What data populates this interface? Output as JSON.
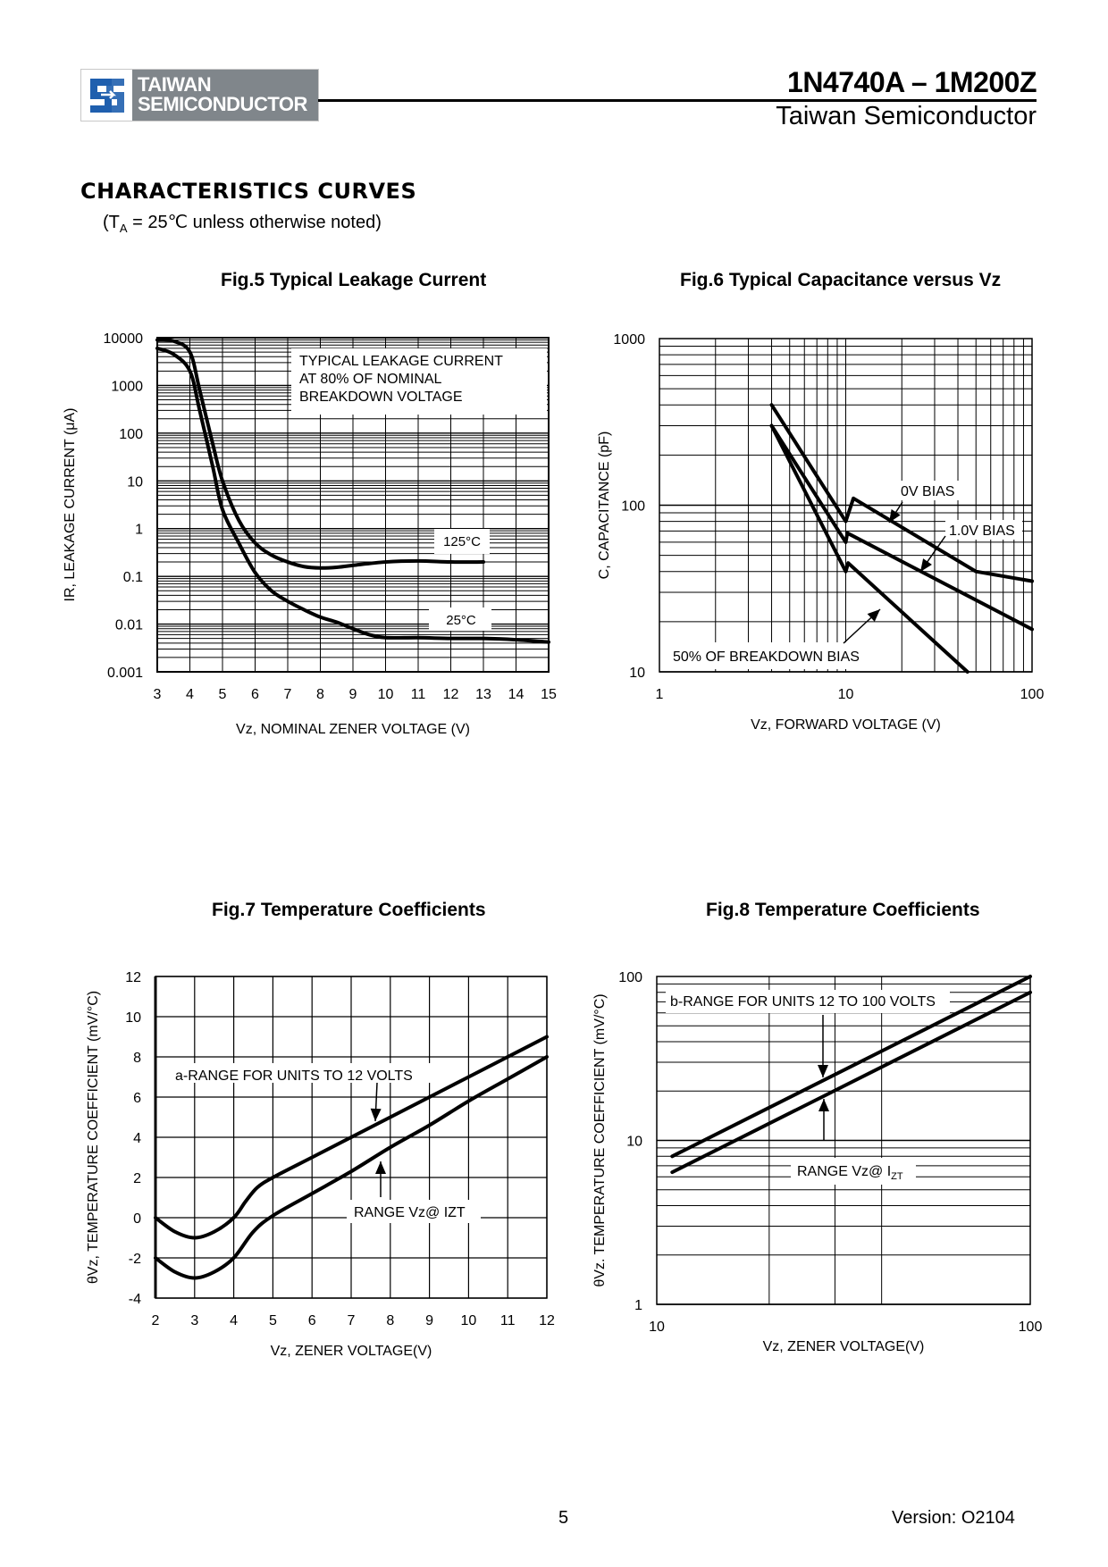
{
  "header": {
    "logo_line1": "TAIWAN",
    "logo_line2": "SEMICONDUCTOR",
    "logo_icon": "ts-logo-icon",
    "brand_color": "#1f5fae",
    "logo_bg": "#80868b",
    "part_range": "1N4740A – 1M200Z",
    "company": "Taiwan Semiconductor"
  },
  "section": {
    "title": "CHARACTERISTICS CURVES",
    "note_prefix": "(T",
    "note_sub": "A",
    "note_suffix": " = 25℃ unless otherwise noted)"
  },
  "footer": {
    "page": "5",
    "version": "Version: O2104"
  },
  "chart_data": [
    {
      "id": "fig5",
      "type": "line",
      "title": "Fig.5 Typical Leakage Current",
      "xlabel": "Vz, NOMINAL ZENER VOLTAGE (V)",
      "ylabel": "IR, LEAKAGE CURRENT (μA)",
      "xscale": "linear",
      "yscale": "log",
      "xlim": [
        3,
        15
      ],
      "ylim": [
        0.001,
        10000
      ],
      "xticks": [
        "3",
        "4",
        "5",
        "6",
        "7",
        "8",
        "9",
        "10",
        "11",
        "12",
        "13",
        "14",
        "15"
      ],
      "yticks": [
        "0.001",
        "0.01",
        "0.1",
        "1",
        "10",
        "100",
        "1000",
        "10000"
      ],
      "grid": true,
      "annotations": [
        "TYPICAL LEAKAGE CURRENT",
        "AT 80% OF NOMINAL",
        "BREAKDOWN VOLTAGE"
      ],
      "series": [
        {
          "name": "125°C",
          "label": "125°C",
          "x": [
            3,
            3.5,
            4,
            4.3,
            4.7,
            5,
            5.5,
            6,
            6.5,
            7,
            7.5,
            8,
            8.5,
            9,
            10,
            11,
            12,
            13
          ],
          "y": [
            9000,
            8500,
            5000,
            800,
            60,
            10,
            1.5,
            0.5,
            0.28,
            0.2,
            0.16,
            0.15,
            0.155,
            0.17,
            0.2,
            0.21,
            0.2,
            0.2
          ]
        },
        {
          "name": "25°C",
          "label": "25°C",
          "x": [
            3,
            3.5,
            4,
            4.3,
            4.7,
            5,
            5.5,
            6,
            6.5,
            7,
            7.5,
            8,
            8.5,
            9,
            9.5,
            10,
            11,
            12,
            13,
            14,
            15
          ],
          "y": [
            6000,
            4500,
            2000,
            300,
            20,
            2.5,
            0.5,
            0.12,
            0.05,
            0.03,
            0.02,
            0.014,
            0.011,
            0.008,
            0.006,
            0.0052,
            0.0052,
            0.005,
            0.005,
            0.0047,
            0.0042
          ]
        }
      ]
    },
    {
      "id": "fig6",
      "type": "line",
      "title": "Fig.6 Typical Capacitance versus Vz",
      "xlabel": "Vz, FORWARD VOLTAGE (V)",
      "ylabel": "C, CAPACITANCE (pF)",
      "xscale": "log",
      "yscale": "log",
      "xlim": [
        1,
        100
      ],
      "ylim": [
        10,
        1000
      ],
      "xticks": [
        "1",
        "10",
        "100"
      ],
      "yticks": [
        "10",
        "100",
        "1000"
      ],
      "grid": true,
      "series": [
        {
          "name": "0V BIAS",
          "label": "0V BIAS",
          "x": [
            4,
            10,
            11,
            50,
            100
          ],
          "y": [
            400,
            80,
            110,
            40,
            35
          ]
        },
        {
          "name": "1.0V BIAS",
          "label": "1.0V BIAS",
          "x": [
            4,
            10,
            10.2,
            100
          ],
          "y": [
            300,
            60,
            68,
            18
          ]
        },
        {
          "name": "50% OF BREAKDOWN BIAS",
          "label": "50% OF BREAKDOWN BIAS",
          "x": [
            4,
            10,
            10.3,
            45
          ],
          "y": [
            300,
            40,
            45,
            10
          ]
        }
      ]
    },
    {
      "id": "fig7",
      "type": "line",
      "title": "Fig.7 Temperature Coefficients",
      "xlabel": "Vz, ZENER VOLTAGE(V)",
      "ylabel": "θVz, TEMPERATURE COEFFICIENT (mV/°C)",
      "xscale": "linear",
      "yscale": "linear",
      "xlim": [
        2,
        12
      ],
      "ylim": [
        -4,
        12
      ],
      "xticks": [
        "2",
        "3",
        "4",
        "5",
        "6",
        "7",
        "8",
        "9",
        "10",
        "11",
        "12"
      ],
      "yticks": [
        "-4",
        "-2",
        "0",
        "2",
        "4",
        "6",
        "8",
        "10",
        "12"
      ],
      "grid": true,
      "annotations": [
        "a-RANGE FOR UNITS TO 12 VOLTS",
        "RANGE Vz@ IZT"
      ],
      "series": [
        {
          "name": "upper",
          "x": [
            2,
            2.5,
            3,
            3.5,
            4,
            4.3,
            4.6,
            5,
            6,
            7,
            8,
            9,
            10,
            11,
            12
          ],
          "y": [
            0,
            -0.7,
            -1,
            -0.7,
            0,
            0.8,
            1.5,
            2,
            3,
            4,
            5,
            6,
            7,
            8,
            9
          ]
        },
        {
          "name": "lower",
          "x": [
            2,
            2.5,
            3,
            3.5,
            4,
            4.5,
            5,
            6,
            7,
            8,
            9,
            10,
            11,
            12
          ],
          "y": [
            -2,
            -2.7,
            -3,
            -2.7,
            -2,
            -0.7,
            0.1,
            1.2,
            2.3,
            3.5,
            4.6,
            5.8,
            6.9,
            8
          ]
        }
      ]
    },
    {
      "id": "fig8",
      "type": "line",
      "title": "Fig.8 Temperature Coefficients",
      "xlabel": "Vz, ZENER VOLTAGE(V)",
      "ylabel": "θVz. TEMPERATURE COEFFICIENT (mV/°C)",
      "xscale": "log",
      "yscale": "log",
      "xlim": [
        10,
        100
      ],
      "ylim": [
        1,
        100
      ],
      "xticks": [
        "10",
        "100"
      ],
      "yticks": [
        "1",
        "10",
        "100"
      ],
      "grid": true,
      "annotations": [
        "b-RANGE FOR UNITS 12 TO 100 VOLTS",
        "RANGE Vz@ I",
        "ZT"
      ],
      "series": [
        {
          "name": "upper",
          "x": [
            11,
            100
          ],
          "y": [
            8,
            100
          ]
        },
        {
          "name": "lower",
          "x": [
            11,
            100
          ],
          "y": [
            6.4,
            80
          ]
        }
      ]
    }
  ]
}
